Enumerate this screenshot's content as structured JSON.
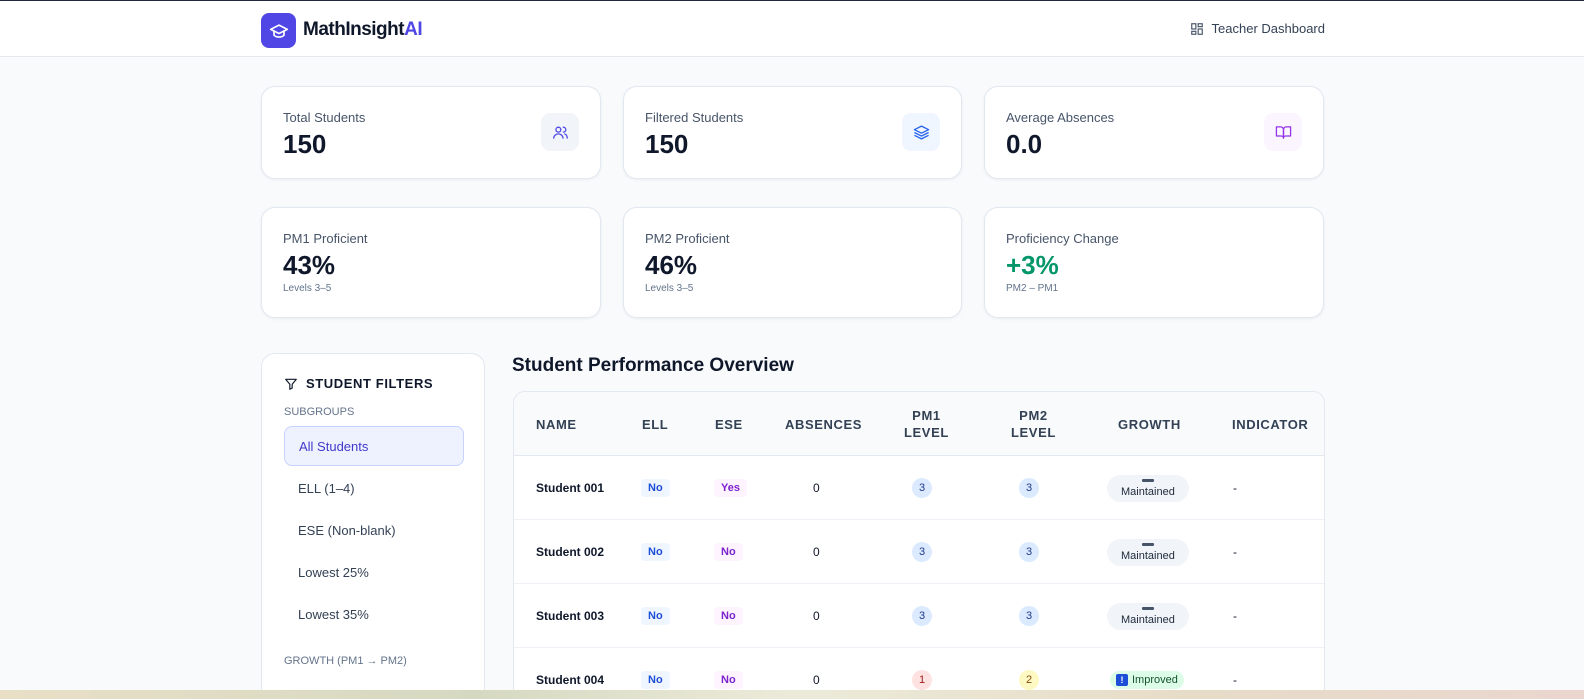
{
  "app": {
    "brand_main": "MathInsight",
    "brand_ai": "AI",
    "teacher_link": "Teacher Dashboard"
  },
  "stats": {
    "total_students": {
      "label": "Total Students",
      "value": "150",
      "icon": "users-icon"
    },
    "filtered_students": {
      "label": "Filtered Students",
      "value": "150",
      "icon": "layers-icon"
    },
    "average_absences": {
      "label": "Average Absences",
      "value": "0.0",
      "icon": "book-open-icon"
    },
    "pm1": {
      "label": "PM1 Proficient",
      "value": "43%",
      "sub": "Levels 3–5"
    },
    "pm2": {
      "label": "PM2 Proficient",
      "value": "46%",
      "sub": "Levels 3–5"
    },
    "change": {
      "label": "Proficiency Change",
      "value": "+3%",
      "sub": "PM2 – PM1"
    }
  },
  "filters": {
    "title": "STUDENT FILTERS",
    "subgroups_label": "SUBGROUPS",
    "items": [
      "All Students",
      "ELL (1–4)",
      "ESE (Non-blank)",
      "Lowest 25%",
      "Lowest 35%"
    ],
    "active_item": "All Students",
    "growth_label": "GROWTH (PM1 → PM2)"
  },
  "table": {
    "title": "Student Performance Overview",
    "headers": [
      "NAME",
      "ELL",
      "ESE",
      "ABSENCES",
      "PM1 LEVEL",
      "PM2 LEVEL",
      "GROWTH",
      "INDICATOR"
    ],
    "rows": [
      {
        "name": "Student 001",
        "ell": "No",
        "ese": "Yes",
        "absences": "0",
        "pm1": "3",
        "pm2": "3",
        "growth": "Maintained",
        "indicator": "-"
      },
      {
        "name": "Student 002",
        "ell": "No",
        "ese": "No",
        "absences": "0",
        "pm1": "3",
        "pm2": "3",
        "growth": "Maintained",
        "indicator": "-"
      },
      {
        "name": "Student 003",
        "ell": "No",
        "ese": "No",
        "absences": "0",
        "pm1": "3",
        "pm2": "3",
        "growth": "Maintained",
        "indicator": "-"
      },
      {
        "name": "Student 004",
        "ell": "No",
        "ese": "No",
        "absences": "0",
        "pm1": "1",
        "pm2": "2",
        "growth": "Improved",
        "indicator": "-"
      }
    ]
  },
  "colors": {
    "accent": "#4f46e5",
    "positive": "#059669",
    "level1": "#fee2e2",
    "level2": "#fef9c3",
    "level3": "#dbeafe"
  }
}
